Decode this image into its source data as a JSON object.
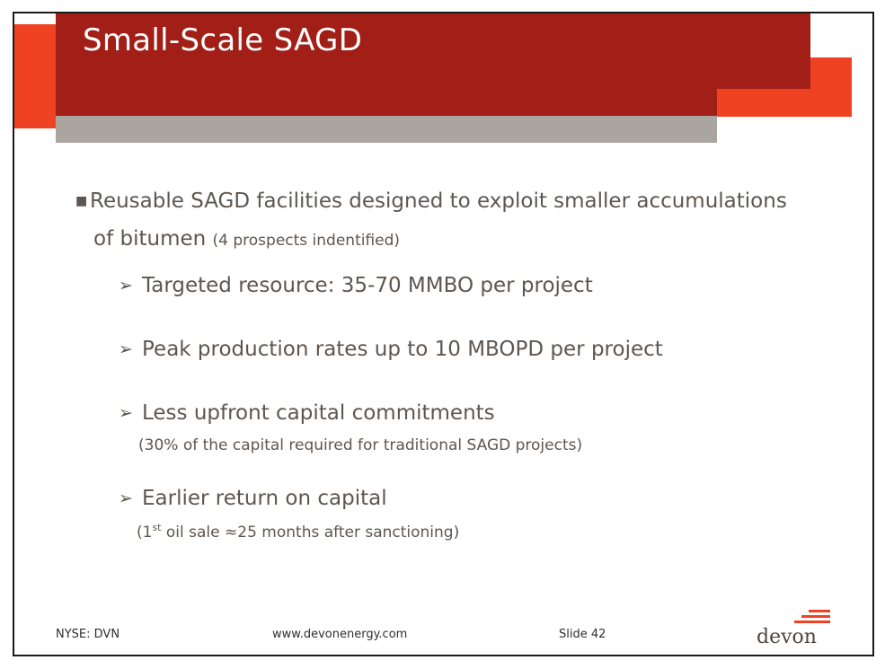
{
  "slide": {
    "title": "Small-Scale SAGD",
    "bullet": {
      "line1": "Reusable SAGD facilities designed to exploit smaller accumulations",
      "line2": "of bitumen",
      "note": "(4 prospects indentified)"
    },
    "subpoints": [
      {
        "text": "Targeted resource: 35-70 MMBO per project"
      },
      {
        "text": "Peak production rates up to 10 MBOPD per project"
      },
      {
        "text": "Less upfront capital commitments",
        "note": "(30% of the capital required for traditional SAGD projects)"
      },
      {
        "text": "Earlier return on capital",
        "note_pre": "(1",
        "note_sup": "st",
        "note_post": " oil sale ≈25 months after sanctioning)"
      }
    ]
  },
  "footer": {
    "ticker": "NYSE: DVN",
    "website": "www.devonenergy.com",
    "slide_number": "Slide 42"
  },
  "logo": {
    "text": "devon"
  },
  "colors": {
    "red": "#a21f17",
    "orange": "#ef4223",
    "gray": "#aba5a0",
    "text": "#5e5650"
  }
}
